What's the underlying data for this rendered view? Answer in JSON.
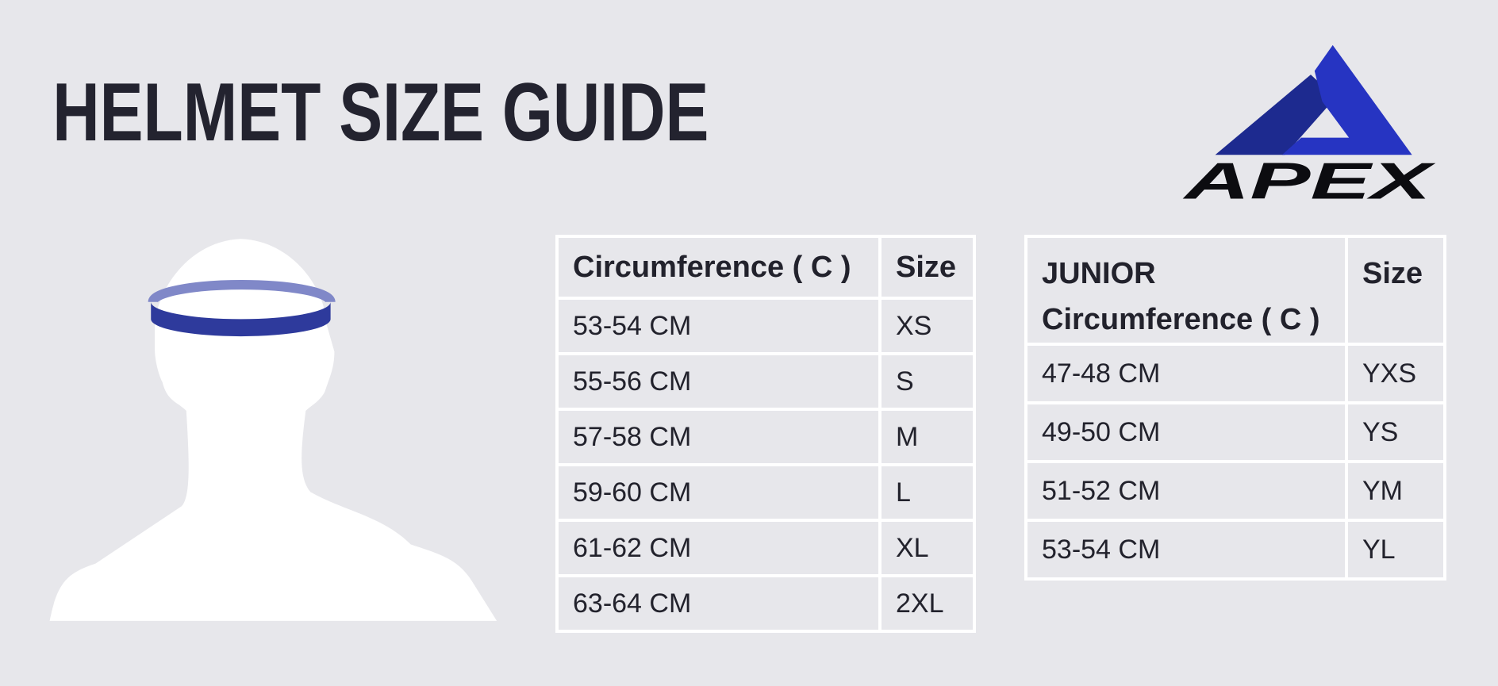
{
  "header": {
    "title": "HELMET SIZE GUIDE"
  },
  "logo": {
    "text": "APEX"
  },
  "adult_table": {
    "columns": [
      "Circumference ( C )",
      "Size"
    ],
    "rows": [
      [
        "53-54 CM",
        "XS"
      ],
      [
        "55-56 CM",
        "S"
      ],
      [
        "57-58 CM",
        "M"
      ],
      [
        "59-60 CM",
        "L"
      ],
      [
        "61-62 CM",
        "XL"
      ],
      [
        "63-64 CM",
        "2XL"
      ]
    ]
  },
  "junior_table": {
    "columns": [
      "JUNIOR Circumference ( C )",
      "Size"
    ],
    "rows": [
      [
        "47-48 CM",
        "YXS"
      ],
      [
        "49-50 CM",
        "YS"
      ],
      [
        "51-52 CM",
        "YM"
      ],
      [
        "53-54 CM",
        "YL"
      ]
    ]
  }
}
